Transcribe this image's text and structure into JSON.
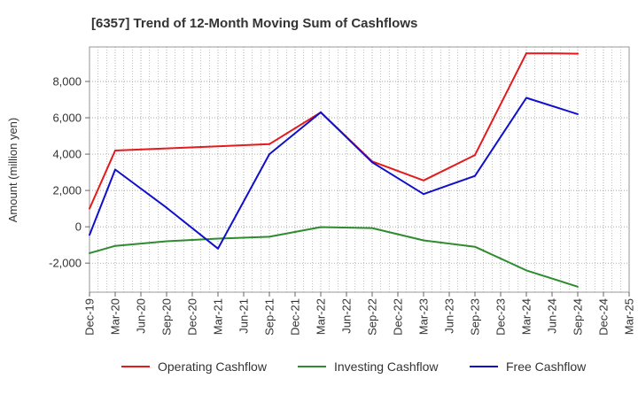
{
  "chart_data": {
    "type": "line",
    "title": "[6357]  Trend of 12-Month Moving Sum of Cashflows",
    "xlabel": "",
    "ylabel": "Amount (million yen)",
    "ylim": [
      -3600,
      9900
    ],
    "yticks": [
      -2000,
      0,
      2000,
      4000,
      6000,
      8000
    ],
    "ytick_labels": [
      "-2,000",
      "0",
      "2,000",
      "4,000",
      "6,000",
      "8,000"
    ],
    "categories": [
      "Dec-19",
      "Mar-20",
      "Jun-20",
      "Sep-20",
      "Dec-20",
      "Mar-21",
      "Jun-21",
      "Sep-21",
      "Dec-21",
      "Mar-22",
      "Jun-22",
      "Sep-22",
      "Dec-22",
      "Mar-23",
      "Jun-23",
      "Sep-23",
      "Dec-23",
      "Mar-24",
      "Jun-24",
      "Sep-24",
      "Dec-24",
      "Mar-25"
    ],
    "grid": true,
    "legend_position": "bottom",
    "series": [
      {
        "name": "Operating Cashflow",
        "color": "#e41a1c",
        "x": [
          "Dec-19",
          "Mar-20",
          "Sep-21",
          "Mar-22",
          "Sep-22",
          "Mar-23",
          "Sep-23",
          "Mar-24",
          "Jun-24",
          "Sep-24"
        ],
        "values": [
          1000,
          4200,
          4550,
          6300,
          3600,
          2550,
          3950,
          9550,
          9550,
          9530
        ]
      },
      {
        "name": "Investing Cashflow",
        "color": "#2e8b2e",
        "x": [
          "Dec-19",
          "Mar-20",
          "Sep-20",
          "Mar-21",
          "Sep-21",
          "Mar-22",
          "Sep-22",
          "Mar-23",
          "Sep-23",
          "Mar-24",
          "Sep-24"
        ],
        "values": [
          -1450,
          -1050,
          -800,
          -650,
          -550,
          -20,
          -70,
          -750,
          -1100,
          -2400,
          -3300
        ]
      },
      {
        "name": "Free Cashflow",
        "color": "#1010cc",
        "x": [
          "Dec-19",
          "Mar-20",
          "Sep-20",
          "Mar-21",
          "Sep-21",
          "Mar-22",
          "Sep-22",
          "Mar-23",
          "Sep-23",
          "Mar-24",
          "Sep-24"
        ],
        "values": [
          -450,
          3150,
          1050,
          -1200,
          4000,
          6300,
          3550,
          1800,
          2800,
          7100,
          6200
        ]
      }
    ]
  }
}
